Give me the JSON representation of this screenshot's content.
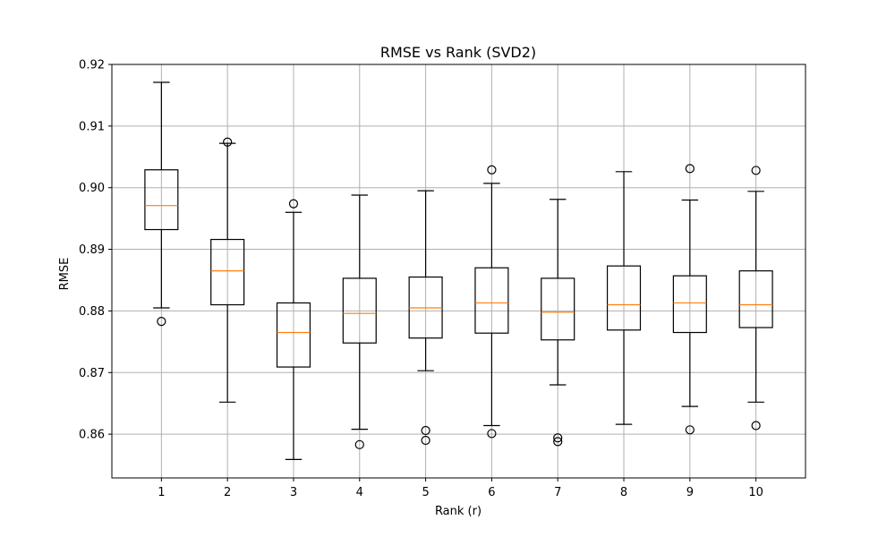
{
  "chart_data": {
    "type": "box",
    "title": "RMSE vs Rank (SVD2)",
    "xlabel": "Rank (r)",
    "ylabel": "RMSE",
    "categories": [
      "1",
      "2",
      "3",
      "4",
      "5",
      "6",
      "7",
      "8",
      "9",
      "10"
    ],
    "ylim": [
      0.8529,
      0.92
    ],
    "yticks": [
      0.86,
      0.87,
      0.88,
      0.89,
      0.9,
      0.91,
      0.92
    ],
    "ytick_labels": [
      "0.86",
      "0.87",
      "0.88",
      "0.89",
      "0.90",
      "0.91",
      "0.92"
    ],
    "grid": true,
    "boxes": [
      {
        "category": "1",
        "whisker_low": 0.8805,
        "q1": 0.8932,
        "median": 0.8971,
        "q3": 0.9029,
        "whisker_high": 0.9171,
        "outliers": [
          0.8783
        ]
      },
      {
        "category": "2",
        "whisker_low": 0.8652,
        "q1": 0.881,
        "median": 0.8865,
        "q3": 0.8916,
        "whisker_high": 0.9072,
        "outliers": [
          0.9074
        ]
      },
      {
        "category": "3",
        "whisker_low": 0.8559,
        "q1": 0.8709,
        "median": 0.8765,
        "q3": 0.8813,
        "whisker_high": 0.896,
        "outliers": [
          0.8974
        ]
      },
      {
        "category": "4",
        "whisker_low": 0.8608,
        "q1": 0.8748,
        "median": 0.8796,
        "q3": 0.8853,
        "whisker_high": 0.8988,
        "outliers": [
          0.8583
        ]
      },
      {
        "category": "5",
        "whisker_low": 0.8703,
        "q1": 0.8756,
        "median": 0.8805,
        "q3": 0.8855,
        "whisker_high": 0.8995,
        "outliers": [
          0.8606,
          0.859
        ]
      },
      {
        "category": "6",
        "whisker_low": 0.8614,
        "q1": 0.8764,
        "median": 0.8813,
        "q3": 0.887,
        "whisker_high": 0.9007,
        "outliers": [
          0.9029,
          0.8601
        ]
      },
      {
        "category": "7",
        "whisker_low": 0.868,
        "q1": 0.8753,
        "median": 0.8798,
        "q3": 0.8853,
        "whisker_high": 0.8981,
        "outliers": [
          0.8594,
          0.8588
        ]
      },
      {
        "category": "8",
        "whisker_low": 0.8616,
        "q1": 0.8769,
        "median": 0.881,
        "q3": 0.8873,
        "whisker_high": 0.9026,
        "outliers": []
      },
      {
        "category": "9",
        "whisker_low": 0.8645,
        "q1": 0.8765,
        "median": 0.8813,
        "q3": 0.8857,
        "whisker_high": 0.898,
        "outliers": [
          0.9031,
          0.8607
        ]
      },
      {
        "category": "10",
        "whisker_low": 0.8652,
        "q1": 0.8773,
        "median": 0.881,
        "q3": 0.8865,
        "whisker_high": 0.8994,
        "outliers": [
          0.9028,
          0.8614
        ]
      }
    ],
    "colors": {
      "box": "#000000",
      "median": "#ff7f0e",
      "grid": "#b0b0b0"
    }
  }
}
